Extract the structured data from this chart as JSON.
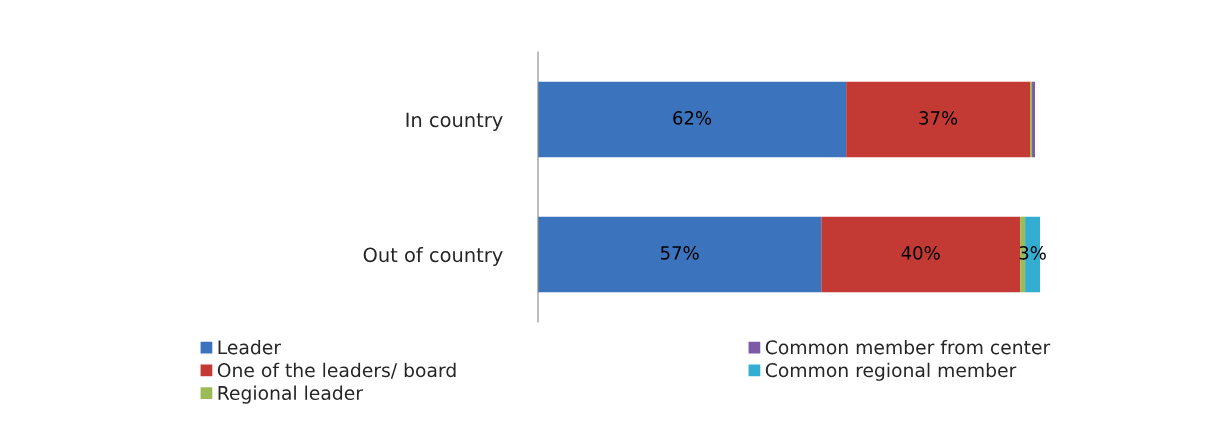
{
  "chart_data": {
    "type": "bar",
    "orientation": "horizontal",
    "stacked": true,
    "categories": [
      "In country",
      "Out of country"
    ],
    "series": [
      {
        "name": "Leader",
        "color": "#3b73bd",
        "values": [
          62,
          57
        ],
        "value_labels": [
          "62%",
          "57%"
        ]
      },
      {
        "name": "One of the leaders/ board",
        "color": "#c33a35",
        "values": [
          37,
          40
        ],
        "value_labels": [
          "37%",
          "40%"
        ]
      },
      {
        "name": "Regional leader",
        "color": "#9bbb59",
        "values": [
          0.4,
          1
        ],
        "value_labels": [
          null,
          null
        ]
      },
      {
        "name": "Common member from center",
        "color": "#7b5ba6",
        "values": [
          0.6,
          0
        ],
        "value_labels": [
          null,
          null
        ]
      },
      {
        "name": "Common regional member",
        "color": "#33aed2",
        "values": [
          0,
          3
        ],
        "value_labels": [
          null,
          "3%"
        ]
      }
    ],
    "xlim": [
      0,
      101
    ],
    "tick_labels": "y",
    "legend": "bottom",
    "grid": false
  }
}
